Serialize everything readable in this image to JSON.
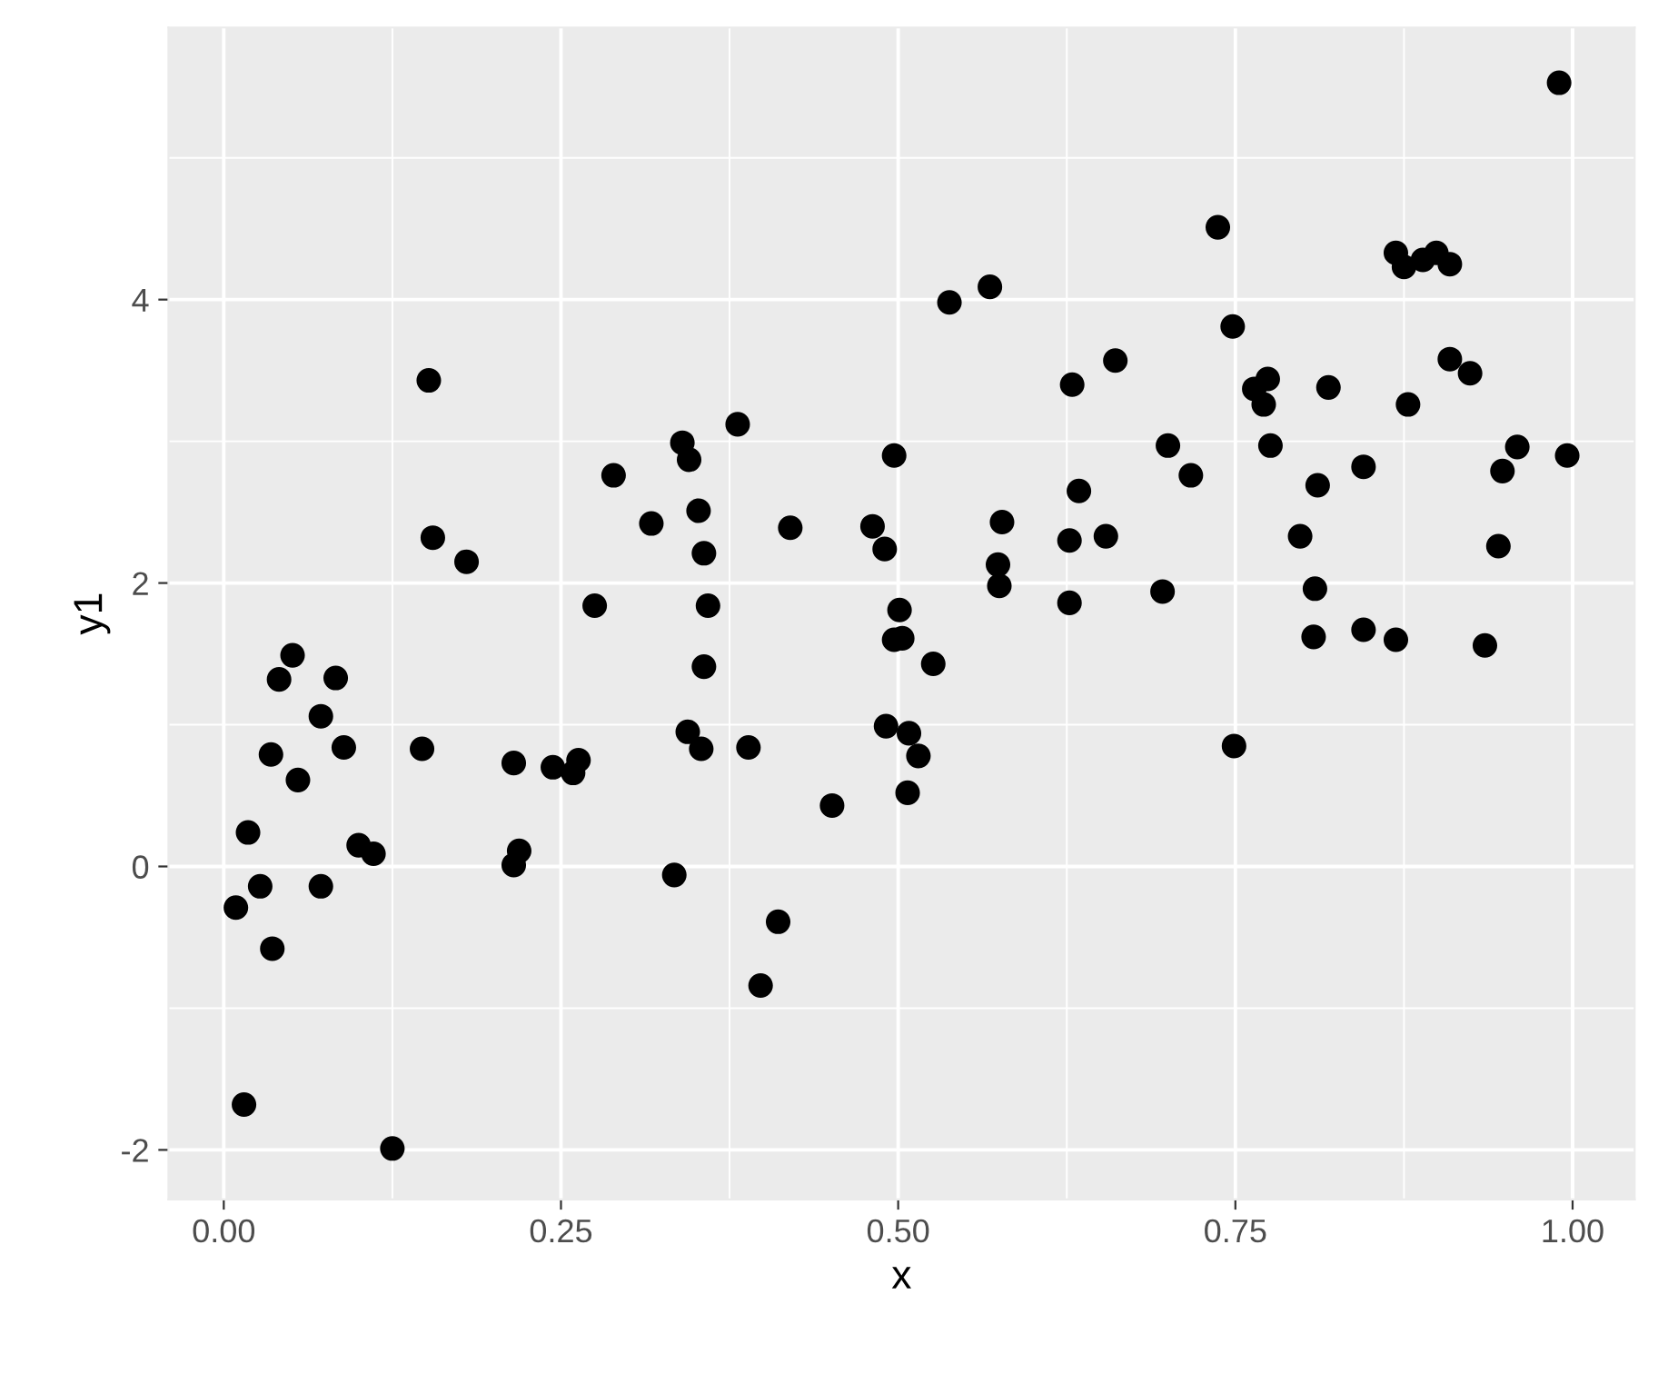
{
  "chart_data": {
    "type": "scatter",
    "xlabel": "x",
    "ylabel": "y1",
    "xlim": [
      -0.041,
      1.046
    ],
    "ylim": [
      -2.35,
      5.92
    ],
    "xticks": [
      {
        "value": 0,
        "label": "0.00"
      },
      {
        "value": 0.25,
        "label": "0.25"
      },
      {
        "value": 0.5,
        "label": "0.50"
      },
      {
        "value": 0.75,
        "label": "0.75"
      },
      {
        "value": 1,
        "label": "1.00"
      }
    ],
    "yticks": [
      -2,
      0,
      2,
      4
    ],
    "grid": true,
    "marker": "circle",
    "series": [
      {
        "color": "#000000",
        "x": [
          0.152,
          0.155,
          0.18,
          0.275,
          0.289,
          0.317,
          0.34,
          0.345,
          0.352,
          0.356,
          0.359,
          0.381,
          0.42,
          0.481,
          0.49,
          0.497,
          0.501,
          0.99,
          0.737,
          0.538,
          0.568,
          0.869,
          0.875,
          0.889,
          0.899,
          0.909,
          0.748,
          0.661,
          0.629,
          0.774,
          0.764,
          0.771,
          0.819,
          0.909,
          0.924,
          0.878,
          0.7,
          0.717,
          0.776,
          0.845,
          0.811,
          0.959,
          0.948,
          0.996,
          0.634,
          0.577,
          0.627,
          0.654,
          0.798,
          0.945,
          0.574,
          0.575,
          0.627,
          0.696,
          0.809,
          0.497,
          0.356,
          0.051,
          0.041,
          0.083,
          0.072,
          0.035,
          0.089,
          0.147,
          0.055,
          0.215,
          0.244,
          0.263,
          0.259,
          0.344,
          0.354,
          0.389,
          0.491,
          0.451,
          0.018,
          0.1,
          0.111,
          0.219,
          0.215,
          0.027,
          0.072,
          0.009,
          0.036,
          0.334,
          0.411,
          0.398,
          0.015,
          0.125,
          0.503,
          0.526,
          0.508,
          0.515,
          0.507,
          0.808,
          0.845,
          0.869,
          0.935,
          0.749
        ],
        "values": [
          3.43,
          2.32,
          2.15,
          1.84,
          2.76,
          2.42,
          2.99,
          2.87,
          2.51,
          2.21,
          1.84,
          3.12,
          2.39,
          2.4,
          2.24,
          2.9,
          1.81,
          5.53,
          4.51,
          3.98,
          4.09,
          4.33,
          4.23,
          4.28,
          4.33,
          4.25,
          3.81,
          3.57,
          3.4,
          3.44,
          3.37,
          3.26,
          3.38,
          3.58,
          3.48,
          3.26,
          2.97,
          2.76,
          2.97,
          2.82,
          2.69,
          2.96,
          2.79,
          2.9,
          2.65,
          2.43,
          2.3,
          2.33,
          2.33,
          2.26,
          2.13,
          1.98,
          1.86,
          1.94,
          1.96,
          1.6,
          1.41,
          1.49,
          1.32,
          1.33,
          1.06,
          0.79,
          0.84,
          0.83,
          0.61,
          0.73,
          0.7,
          0.75,
          0.66,
          0.95,
          0.83,
          0.84,
          0.99,
          0.43,
          0.24,
          0.15,
          0.09,
          0.11,
          0.01,
          -0.14,
          -0.14,
          -0.29,
          -0.58,
          -0.06,
          -0.39,
          -0.84,
          -1.68,
          -1.99,
          1.61,
          1.43,
          0.94,
          0.78,
          0.52,
          1.62,
          1.67,
          1.6,
          1.56,
          0.85
        ]
      }
    ]
  }
}
